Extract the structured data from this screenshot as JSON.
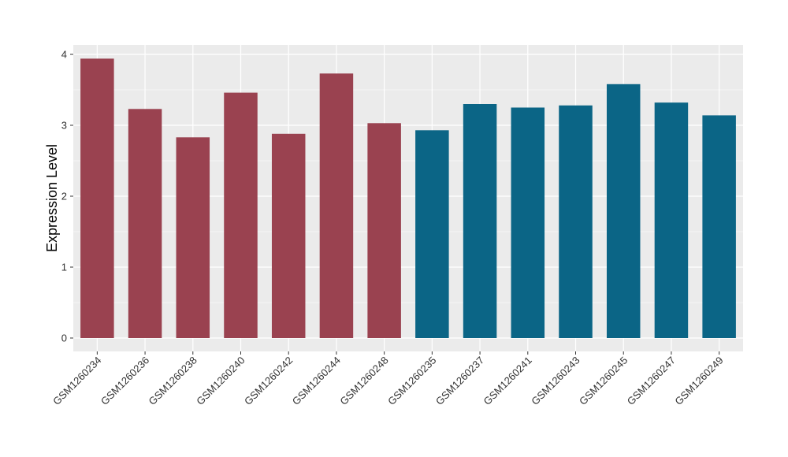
{
  "chart_data": {
    "type": "bar",
    "title": "",
    "xlabel": "",
    "ylabel": "Expression Level",
    "ylim": [
      0,
      4.15
    ],
    "yticks": [
      0,
      1,
      2,
      3,
      4
    ],
    "grid": true,
    "legend": "none",
    "categories": [
      "GSM1260234",
      "GSM1260236",
      "GSM1260238",
      "GSM1260240",
      "GSM1260242",
      "GSM1260244",
      "GSM1260248",
      "GSM1260235",
      "GSM1260237",
      "GSM1260241",
      "GSM1260243",
      "GSM1260245",
      "GSM1260247",
      "GSM1260249"
    ],
    "values": [
      3.94,
      3.23,
      2.83,
      3.46,
      2.88,
      3.73,
      3.03,
      2.93,
      3.3,
      3.25,
      3.28,
      3.58,
      3.32,
      3.14
    ],
    "colors": [
      "#9a4250",
      "#9a4250",
      "#9a4250",
      "#9a4250",
      "#9a4250",
      "#9a4250",
      "#9a4250",
      "#0b6586",
      "#0b6586",
      "#0b6586",
      "#0b6586",
      "#0b6586",
      "#0b6586",
      "#0b6586"
    ],
    "panel_background": "#ebebeb",
    "grid_color": "#ffffff"
  }
}
